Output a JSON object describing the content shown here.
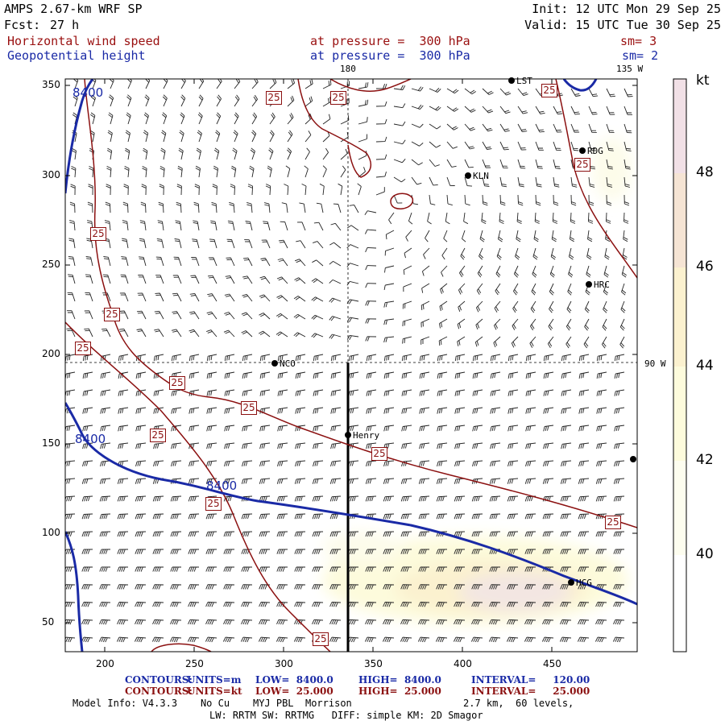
{
  "header": {
    "model": "AMPS 2.67-km WRF SP",
    "fcst_label": "Fcst:",
    "fcst_value": "27 h",
    "init": "Init: 12 UTC Mon 29 Sep 25",
    "valid": "Valid: 15 UTC Tue 30 Sep 25",
    "field1": "Horizontal wind speed",
    "field1_level": "at pressure =  300 hPa",
    "field1_sm": "sm= 3",
    "field2": "Geopotential height",
    "field2_level": "at pressure =  300 hPa",
    "field2_sm": "sm= 2"
  },
  "map": {
    "lon_180": "180",
    "lon_135w": "135 W",
    "lon_90w": "90 W",
    "x_ticks": [
      "200",
      "250",
      "300",
      "350",
      "400",
      "450"
    ],
    "y_ticks": [
      "350",
      "300",
      "250",
      "200",
      "150",
      "100",
      "50"
    ],
    "height_labels": [
      "8400",
      "8400",
      "8400"
    ],
    "speed_label": "25",
    "stations": [
      "LST",
      "RDG",
      "KLN",
      "HRC",
      "NCO",
      "Henry",
      "HCG"
    ],
    "colorbar_unit": "kt",
    "colorbar_ticks": [
      "48",
      "46",
      "44",
      "42",
      "40"
    ],
    "colors": {
      "height_contour": "#1a2aa6",
      "speed_contour": "#8b1010",
      "shade_40": "#fdfdef",
      "shade_42": "#fdfbdc",
      "shade_44": "#fbf1cf",
      "shade_46": "#f5e4d4",
      "shade_48": "#f1e0e6"
    }
  },
  "footer": {
    "c1_label": "CONTOURS:",
    "c1_units": "UNITS=m",
    "c1_low": "LOW=  8400.0",
    "c1_high": "HIGH=  8400.0",
    "c1_int": "INTERVAL=     120.00",
    "c2_label": "CONTOURS:",
    "c2_units": "UNITS=kt",
    "c2_low": "LOW=  25.000",
    "c2_high": "HIGH=  25.000",
    "c2_int": "INTERVAL=     25.000",
    "model_info": "Model Info: V4.3.3    No Cu    MYJ PBL  Morrison",
    "grid_info": "2.7 km,  60 levels,",
    "physics": "LW: RRTM SW: RRTMG   DIFF: simple KM: 2D Smagor"
  }
}
